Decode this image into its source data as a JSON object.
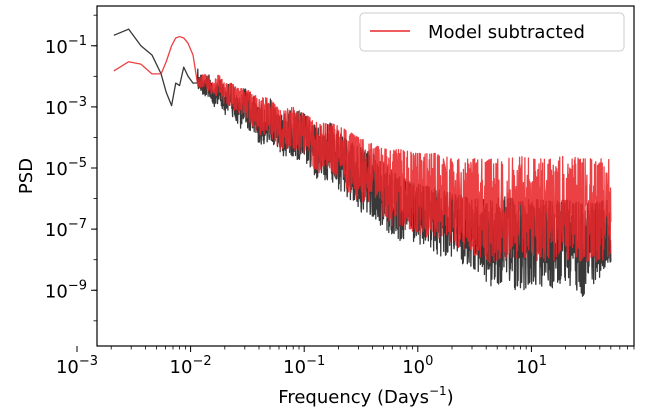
{
  "chart_data": {
    "type": "line",
    "xlabel": "Frequency (Days",
    "xlabel_superscript": "−1",
    "xlabel_suffix": ")",
    "ylabel": "PSD",
    "xscale": "log",
    "yscale": "log",
    "xlim": [
      0.0015,
      80
    ],
    "ylim": [
      1.5e-11,
      2.0
    ],
    "x_ticks": [
      {
        "value": 0.001,
        "base": "10",
        "exp": "−3"
      },
      {
        "value": 0.01,
        "base": "10",
        "exp": "−2"
      },
      {
        "value": 0.1,
        "base": "10",
        "exp": "−1"
      },
      {
        "value": 1,
        "base": "10",
        "exp": "0"
      },
      {
        "value": 10,
        "base": "10",
        "exp": "1"
      }
    ],
    "y_ticks": [
      {
        "value": 1e-09,
        "base": "10",
        "exp": "−9"
      },
      {
        "value": 1e-07,
        "base": "10",
        "exp": "−7"
      },
      {
        "value": 1e-05,
        "base": "10",
        "exp": "−5"
      },
      {
        "value": 0.001,
        "base": "10",
        "exp": "−3"
      },
      {
        "value": 0.1,
        "base": "10",
        "exp": "−1"
      }
    ],
    "grid": false,
    "legend_position": "top-right",
    "series": [
      {
        "name": "",
        "color": "#222222",
        "x": [
          0.00211,
          0.00285,
          0.00365,
          0.00457,
          0.0055,
          0.0061,
          0.0068,
          0.0074,
          0.008,
          0.0087,
          0.0095,
          0.0105,
          0.0115,
          0.013,
          0.0145,
          0.016,
          0.018,
          0.02,
          0.023,
          0.026,
          0.03,
          0.035,
          0.04,
          0.05,
          0.06,
          0.08,
          0.1,
          0.13,
          0.17,
          0.22,
          0.3,
          0.4,
          0.55,
          0.7,
          1.0,
          1.5,
          2.0,
          3.0,
          4.3,
          6.0,
          8.0,
          10.0,
          15.0,
          20.0,
          28.0,
          40.0,
          50.0
        ],
        "y": [
          0.22,
          0.35,
          0.1,
          0.05,
          0.012,
          0.003,
          0.0011,
          0.006,
          0.005,
          0.02,
          0.01,
          0.006,
          0.02,
          0.008,
          0.012,
          0.003,
          0.01,
          0.005,
          0.007,
          0.002,
          0.004,
          0.003,
          0.001,
          0.002,
          0.0005,
          0.0008,
          0.0006,
          0.0002,
          0.0003,
          0.0001,
          5e-05,
          3e-05,
          1e-05,
          5e-06,
          3e-06,
          2e-06,
          1.5e-06,
          1e-06,
          9e-07,
          1.2e-06,
          8e-07,
          1e-06,
          8e-07,
          9e-07,
          7e-07,
          8e-07,
          9e-07
        ],
        "lower_y": [
          0.22,
          0.35,
          0.1,
          0.05,
          0.012,
          0.003,
          0.0011,
          0.003,
          0.002,
          0.008,
          0.004,
          0.002,
          0.004,
          0.002,
          0.002,
          0.0008,
          0.001,
          0.0005,
          0.0005,
          0.00015,
          0.0002,
          0.0001,
          5e-05,
          5e-05,
          2e-05,
          2e-05,
          1e-05,
          3e-06,
          3e-06,
          1e-06,
          3e-07,
          2e-07,
          5e-08,
          3e-08,
          2e-08,
          1e-08,
          8e-09,
          4e-09,
          7e-10,
          1e-09,
          5e-10,
          1e-09,
          6e-10,
          1e-09,
          4e-10,
          2e-09,
          3e-09
        ]
      },
      {
        "name": "Model subtracted",
        "color": "#e8262a",
        "x": [
          0.00211,
          0.00285,
          0.00365,
          0.00457,
          0.0055,
          0.0061,
          0.0068,
          0.0074,
          0.008,
          0.0087,
          0.0095,
          0.0105,
          0.0115,
          0.013,
          0.0145,
          0.016,
          0.018,
          0.02,
          0.023,
          0.026,
          0.03,
          0.035,
          0.04,
          0.05,
          0.06,
          0.08,
          0.1,
          0.13,
          0.17,
          0.22,
          0.3,
          0.4,
          0.55,
          0.7,
          1.0,
          1.5,
          2.0,
          3.0,
          4.3,
          6.0,
          8.0,
          10.0,
          15.0,
          20.0,
          28.0,
          40.0,
          50.0
        ],
        "y": [
          0.015,
          0.03,
          0.025,
          0.012,
          0.012,
          0.03,
          0.1,
          0.18,
          0.2,
          0.18,
          0.12,
          0.05,
          0.008,
          0.012,
          0.01,
          0.008,
          0.012,
          0.006,
          0.006,
          0.004,
          0.004,
          0.003,
          0.002,
          0.002,
          0.0008,
          0.001,
          0.0006,
          0.0003,
          0.0003,
          0.0002,
          0.0001,
          6e-05,
          4e-05,
          4e-05,
          3e-05,
          3e-05,
          2e-05,
          2e-05,
          2e-05,
          2e-05,
          2.5e-05,
          2e-05,
          2e-05,
          2.5e-05,
          2e-05,
          2e-05,
          2.5e-05
        ],
        "lower_y": [
          0.015,
          0.03,
          0.025,
          0.012,
          0.012,
          0.03,
          0.1,
          0.18,
          0.2,
          0.18,
          0.12,
          0.05,
          0.004,
          0.004,
          0.003,
          0.002,
          0.002,
          0.001,
          0.0008,
          0.0005,
          0.0004,
          0.0002,
          0.0001,
          0.0001,
          3e-05,
          3e-05,
          2e-05,
          5e-06,
          5e-06,
          2e-06,
          6e-07,
          4e-07,
          1e-07,
          8e-08,
          5e-08,
          3e-08,
          2e-08,
          1e-08,
          5e-09,
          6e-09,
          4e-09,
          6e-09,
          5e-09,
          6e-09,
          4e-09,
          6e-09,
          8e-09
        ]
      }
    ]
  }
}
